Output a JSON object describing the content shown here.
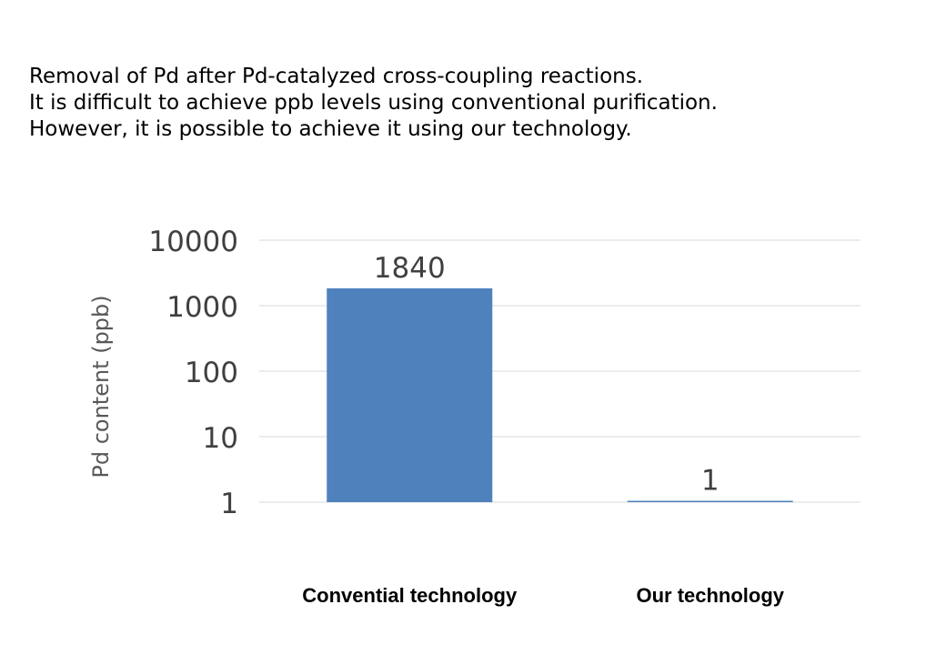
{
  "caption": {
    "lines": [
      "Removal of Pd after Pd-catalyzed cross-coupling reactions.",
      "It is difficult to achieve ppb levels using conventional purification.",
      "However, it is possible to achieve it using our technology."
    ]
  },
  "chart_data": {
    "type": "bar",
    "categories": [
      "Convential technology",
      "Our technology"
    ],
    "values": [
      1840,
      1
    ],
    "data_labels": [
      "1840",
      "1"
    ],
    "title": "",
    "xlabel": "",
    "ylabel": "Pd content (ppb)",
    "yscale": "log",
    "ylim": [
      1,
      10000
    ],
    "yticks": [
      1,
      10,
      100,
      1000,
      10000
    ],
    "ytick_labels": [
      "1",
      "10",
      "100",
      "1000",
      "10000"
    ],
    "grid": true,
    "legend": "none",
    "colors": {
      "bar": "#4f81bd",
      "grid": "#d9d9d9",
      "tick_text": "#404040",
      "ylabel_text": "#595959",
      "category_text": "#000000"
    }
  }
}
